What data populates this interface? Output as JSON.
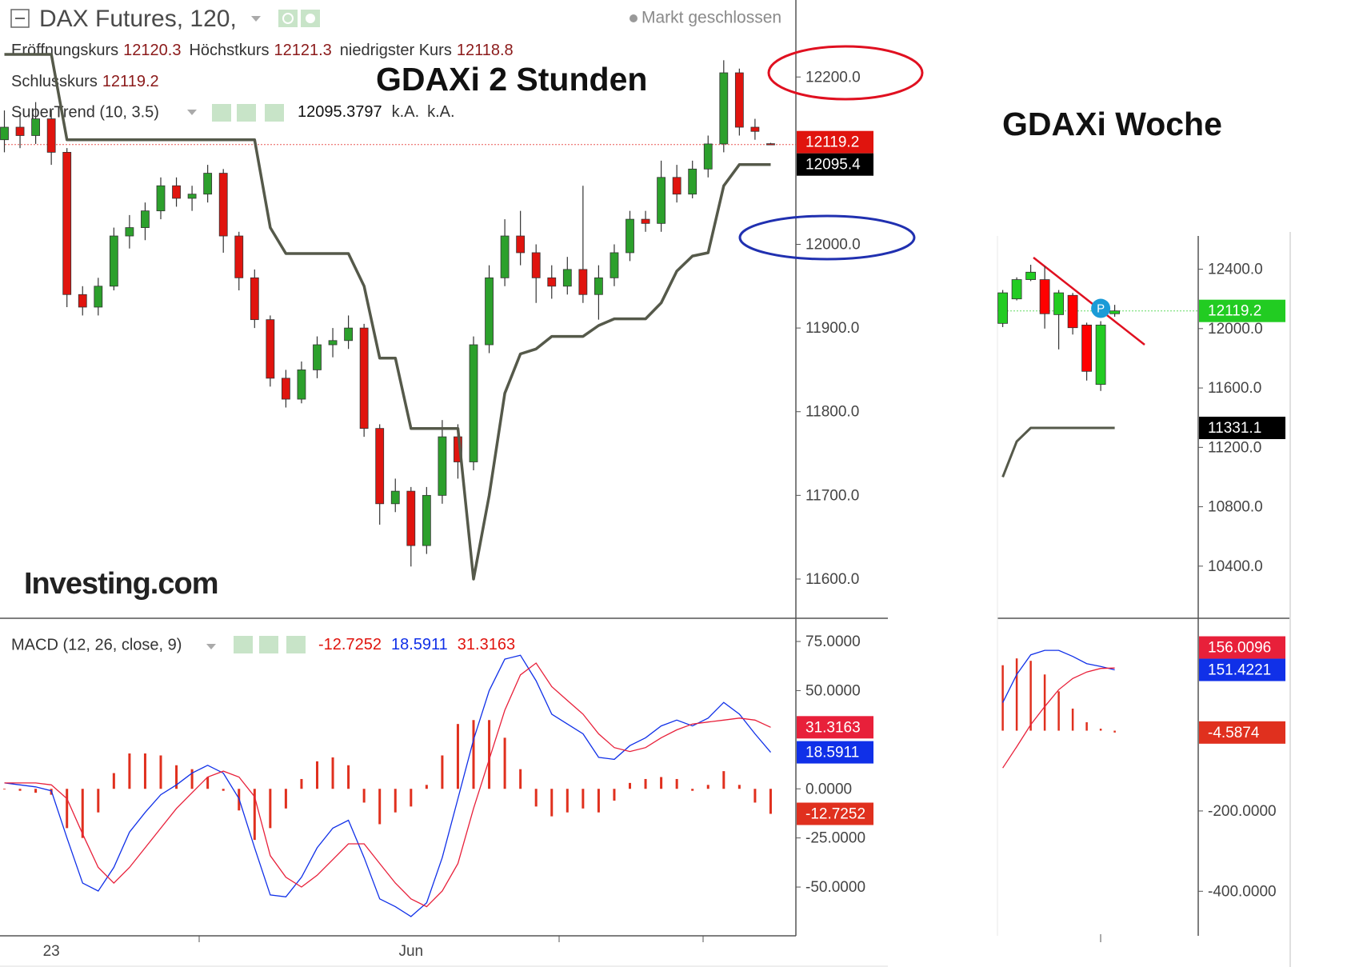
{
  "header": {
    "instrument": "DAX Futures, 120,",
    "status": "Markt geschlossen",
    "open_label": "Eröffnungskurs",
    "high_label": "Höchstkurs",
    "low_label": "niedrigster Kurs",
    "close_label": "Schlusskurs",
    "supertrend_extra": [
      "k.A.",
      "k.A."
    ],
    "watermark": "Investing.com"
  },
  "chart_data": [
    {
      "type": "candlestick",
      "title": "GDAXi 2 Stunden",
      "categories": [
        null,
        null,
        null,
        "23",
        null,
        null,
        null,
        null,
        null,
        null,
        null,
        null,
        null,
        null,
        null,
        null,
        null,
        null,
        null,
        null,
        null,
        null,
        null,
        null,
        null,
        null,
        "Jun",
        null,
        null,
        null,
        null,
        null,
        null,
        null,
        null,
        null,
        null,
        null,
        null,
        null,
        null,
        null,
        null,
        null,
        null,
        null,
        null,
        null,
        null,
        null
      ],
      "open": [
        12125,
        12140,
        12130,
        12150,
        12110,
        11940,
        11925,
        11950,
        12010,
        12020,
        12040,
        12070,
        12055,
        12060,
        12085,
        12010,
        11960,
        11910,
        11840,
        11815,
        11850,
        11880,
        11885,
        11900,
        11780,
        11690,
        11705,
        11640,
        11700,
        11770,
        11740,
        11880,
        11960,
        12010,
        11990,
        11960,
        11950,
        11970,
        11940,
        11960,
        11990,
        12030,
        12025,
        12080,
        12060,
        12090,
        12120,
        12205,
        12140,
        12120.3
      ],
      "high": [
        12160,
        12155,
        12170,
        12160,
        12115,
        11950,
        11960,
        12020,
        12035,
        12050,
        12080,
        12080,
        12070,
        12095,
        12090,
        12015,
        11970,
        11915,
        11850,
        11860,
        11890,
        11900,
        11915,
        11905,
        11785,
        11720,
        11710,
        11710,
        11790,
        11785,
        11890,
        11975,
        12030,
        12040,
        12000,
        11975,
        11985,
        12070,
        11975,
        12000,
        12040,
        12040,
        12100,
        12095,
        12100,
        12130,
        12220,
        12210,
        12150,
        12121.3
      ],
      "low": [
        12110,
        12115,
        12120,
        12095,
        11925,
        11915,
        11915,
        11945,
        11995,
        12005,
        12030,
        12045,
        12040,
        12050,
        11990,
        11945,
        11900,
        11830,
        11805,
        11810,
        11840,
        11865,
        11875,
        11770,
        11665,
        11680,
        11615,
        11630,
        11690,
        11720,
        11730,
        11870,
        11950,
        11975,
        11930,
        11935,
        11940,
        11930,
        11910,
        11950,
        11980,
        12015,
        12015,
        12050,
        12055,
        12080,
        12110,
        12130,
        12125,
        12118.8
      ],
      "close": [
        12140,
        12130,
        12150,
        12110,
        11940,
        11925,
        11950,
        12010,
        12020,
        12040,
        12070,
        12055,
        12060,
        12085,
        12010,
        11960,
        11910,
        11840,
        11815,
        11850,
        11880,
        11885,
        11900,
        11780,
        11690,
        11705,
        11640,
        11700,
        11770,
        11740,
        11880,
        11960,
        12010,
        11990,
        11960,
        11950,
        11970,
        11940,
        11960,
        11990,
        12030,
        12025,
        12080,
        12060,
        12090,
        12120,
        12205,
        12140,
        12135,
        12119.2
      ],
      "up_color": "#2ca02c",
      "down_color": "#e0140e",
      "series": [
        {
          "name": "SuperTrend (10, 3.5)",
          "color": "#55594a",
          "tag_color": "#000000",
          "tag_label": "12095.4",
          "values": [
            12227,
            12227,
            12227,
            12227,
            12125,
            12125,
            12125,
            12125,
            12125,
            12125,
            12125,
            12125,
            12125,
            12125,
            12125,
            12125,
            12125,
            12020,
            11989,
            11989,
            11989,
            11989,
            11989,
            11950,
            11864,
            11864,
            11780,
            11780,
            11780,
            11780,
            11600,
            11700,
            11822,
            11869,
            11875,
            11890,
            11890,
            11890,
            11903,
            11911,
            11911,
            11911,
            11930,
            11968,
            11986,
            11990,
            12070,
            12095.3797,
            12095.3797,
            12095.3797
          ]
        }
      ],
      "ylim": [
        11556,
        12292
      ],
      "yticks": [
        {
          "value": 12200,
          "label": "12200.0"
        },
        {
          "value": 12000,
          "label": "12000.0"
        },
        {
          "value": 11900,
          "label": "11900.0"
        },
        {
          "value": 11800,
          "label": "11800.0"
        },
        {
          "value": 11700,
          "label": "11700.0"
        },
        {
          "value": 11600,
          "label": "11600.0"
        }
      ]
    },
    {
      "type": "macd",
      "title": "MACD (12, 26, close, 9)",
      "series": [
        {
          "style": "histogram",
          "color": "#e0301e",
          "values": [
            0,
            -1,
            -2,
            -3,
            -20,
            -25,
            -12,
            8,
            18,
            18,
            17,
            12,
            10,
            6,
            -1,
            -11,
            -26,
            -20,
            -10,
            5,
            14,
            16,
            12,
            -7,
            -18,
            -12,
            -9,
            2,
            17,
            33,
            35,
            35,
            26,
            10,
            -9,
            -14,
            -12,
            -10,
            -12,
            -6,
            3,
            5,
            6,
            5,
            -1,
            2,
            9,
            2,
            -7,
            -12.7252
          ]
        },
        {
          "style": "line",
          "color": "#1030e8",
          "values": [
            3,
            2,
            1,
            -1,
            -25,
            -48,
            -52,
            -40,
            -22,
            -12,
            -3,
            2,
            8,
            12,
            8,
            -5,
            -30,
            -54,
            -55,
            -45,
            -30,
            -20,
            -16,
            -35,
            -56,
            -60,
            -65,
            -58,
            -35,
            -5,
            25,
            50,
            66,
            68,
            55,
            38,
            33,
            28,
            16,
            15,
            22,
            26,
            32,
            35,
            32,
            36,
            44,
            38,
            28,
            18.5911
          ]
        },
        {
          "style": "line",
          "color": "#e8203a",
          "values": [
            3,
            3,
            3,
            2,
            -5,
            -23,
            -40,
            -48,
            -40,
            -30,
            -20,
            -10,
            -2,
            6,
            9,
            6,
            -4,
            -34,
            -45,
            -50,
            -44,
            -36,
            -28,
            -28,
            -38,
            -48,
            -56,
            -60,
            -52,
            -38,
            -10,
            15,
            40,
            58,
            64,
            52,
            45,
            38,
            28,
            21,
            19,
            21,
            26,
            30,
            33,
            34,
            35,
            36,
            35,
            31.3163
          ]
        }
      ],
      "ylim": [
        -74,
        86
      ],
      "yticks": [
        {
          "value": 75,
          "label": "75.0000"
        },
        {
          "value": 50,
          "label": "50.0000"
        },
        {
          "value": 0,
          "label": "0.0000"
        },
        {
          "value": -25,
          "label": "-25.0000"
        },
        {
          "value": -50,
          "label": "-50.0000"
        }
      ]
    },
    {
      "type": "candlestick",
      "title": "GDAXi Woche",
      "marker_label": "P",
      "open": [
        12035,
        12200,
        12330,
        12330,
        12094,
        12224,
        12024,
        11624,
        12100
      ],
      "high": [
        12260,
        12345,
        12430,
        12420,
        12260,
        12240,
        12040,
        12050,
        12160
      ],
      "low": [
        12010,
        12190,
        12320,
        12000,
        11860,
        11960,
        11650,
        11580,
        12080
      ],
      "close": [
        12241,
        12330,
        12380,
        12100,
        12241,
        12006,
        11712,
        12024,
        12119.2
      ],
      "up_color": "#22cc22",
      "down_color": "#ff0000",
      "series": [
        {
          "color": "#55594a",
          "tag_color": "#000000",
          "values": [
            11000,
            11240,
            11331.1,
            11331.1,
            11331.1,
            11331.1,
            11331.1,
            11331.1,
            11331.1
          ]
        }
      ],
      "ylim": [
        10065,
        12624
      ],
      "yticks": [
        {
          "value": 12400,
          "label": "12400.0"
        },
        {
          "value": 12000,
          "label": "12000.0"
        },
        {
          "value": 11600,
          "label": "11600.0"
        },
        {
          "value": 11200,
          "label": "11200.0"
        },
        {
          "value": 10800,
          "label": "10800.0"
        },
        {
          "value": 10400,
          "label": "10400.0"
        }
      ]
    },
    {
      "type": "macd",
      "series": [
        {
          "style": "histogram",
          "color": "#e0301e",
          "values": [
            163,
            180,
            174,
            140,
            98,
            55,
            21,
            5,
            -4.5874
          ]
        },
        {
          "style": "line",
          "color": "#1030e8",
          "values": [
            70,
            140,
            189,
            200,
            200,
            185,
            167,
            160,
            151.4221
          ]
        },
        {
          "style": "line",
          "color": "#e8203a",
          "values": [
            -93,
            -40,
            15,
            60,
            102,
            130,
            146,
            155,
            156.0096
          ]
        }
      ],
      "ylim": [
        -507,
        276
      ],
      "yticks": [
        {
          "value": -200,
          "label": "-200.0000"
        },
        {
          "value": -400,
          "label": "-400.0000"
        }
      ]
    }
  ]
}
